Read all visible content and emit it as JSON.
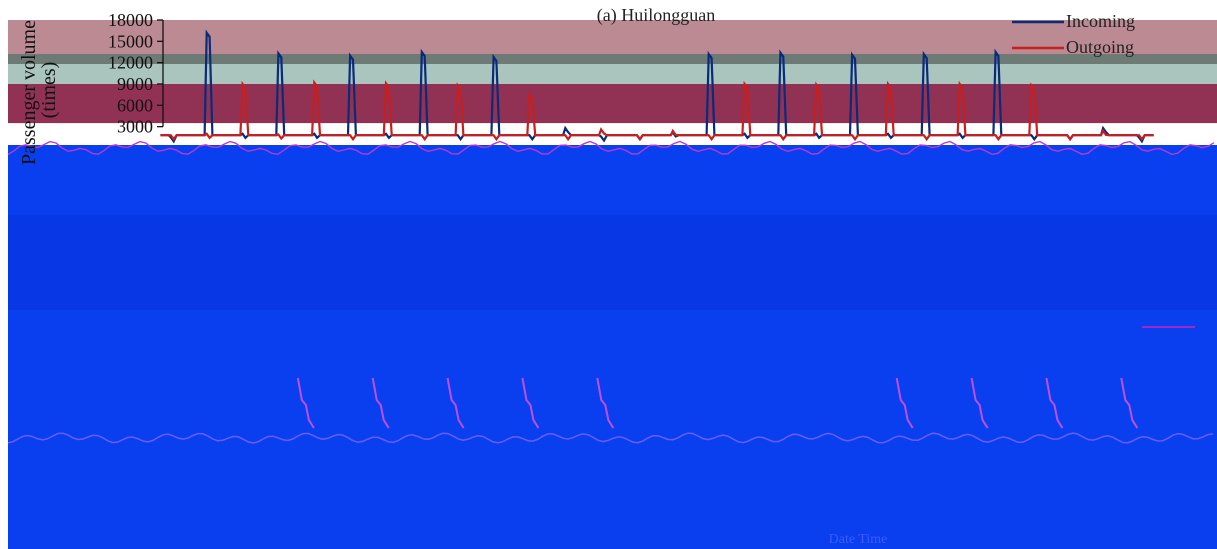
{
  "chart_data": {
    "type": "line",
    "title": "(a) Huilongguan",
    "ylabel": "Passenger volume\n(times)",
    "xlabel": "Date Time",
    "yticks": [
      3000,
      6000,
      9000,
      12000,
      15000,
      18000
    ],
    "ylim": [
      0,
      18000
    ],
    "legend_position": "top-right",
    "grid": false,
    "bands": [
      {
        "from": 12500,
        "to": 18000,
        "color": "#bb8a93"
      },
      {
        "from": 9000,
        "to": 12500,
        "color": "#a9c5bd"
      },
      {
        "from": 3500,
        "to": 9000,
        "color": "#913255"
      }
    ],
    "series": [
      {
        "name": "Incoming",
        "color": "#0a2a7a",
        "values": [
          1500,
          16200,
          2000,
          13300,
          2000,
          13000,
          2000,
          13500,
          1800,
          12800,
          1800,
          2800,
          1600,
          1800,
          2200,
          13200,
          2000,
          13400,
          2000,
          13100,
          2000,
          13200,
          2000,
          13500,
          1800,
          1800,
          2800,
          1500
        ]
      },
      {
        "name": "Outgoing",
        "color": "#c81e1e",
        "values": [
          1800,
          2000,
          9000,
          1900,
          9200,
          1800,
          9100,
          1800,
          8800,
          1800,
          7500,
          1800,
          2600,
          1800,
          2400,
          1800,
          9000,
          1800,
          8900,
          1800,
          9000,
          1800,
          9000,
          1800,
          8800,
          1800,
          2400,
          1800
        ]
      },
      {
        "name": "",
        "color": "#b53ad0",
        "values": [
          0,
          0,
          0,
          0,
          0,
          0,
          0,
          0,
          0,
          0,
          0,
          0,
          0,
          0,
          0,
          0,
          0,
          0,
          0,
          0,
          0,
          0,
          0,
          0,
          0,
          0,
          0,
          0
        ]
      }
    ],
    "lower_panel": {
      "peaks": [
        0,
        1,
        1,
        1,
        1,
        1,
        0,
        0,
        0,
        1,
        1,
        1,
        1,
        1,
        0,
        0
      ]
    }
  }
}
